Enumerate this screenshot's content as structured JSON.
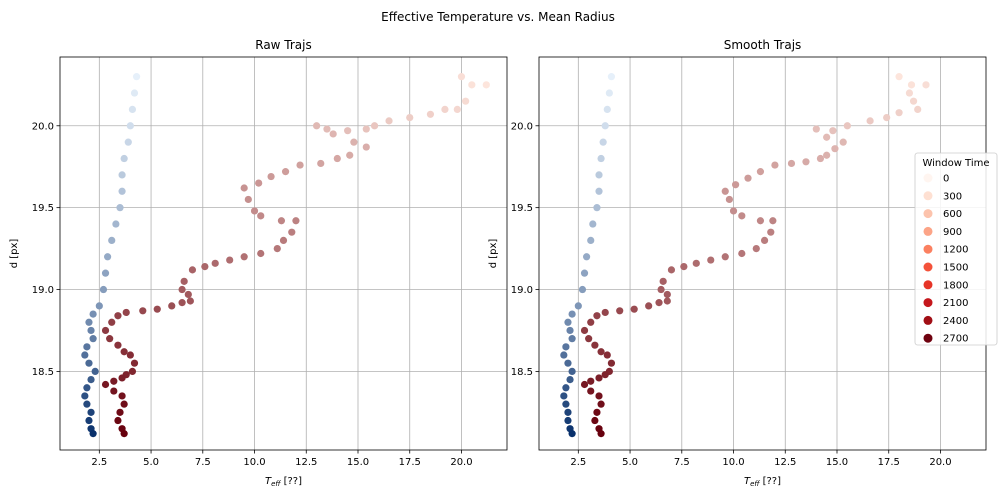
{
  "figure": {
    "suptitle": "Effective Temperature vs. Mean Radius"
  },
  "chart_data": [
    {
      "type": "scatter",
      "title": "Raw Trajs",
      "xlabel": "T_eff [??]",
      "ylabel": "d [px]",
      "xlim": [
        0.6,
        22.2
      ],
      "ylim": [
        18.02,
        20.42
      ],
      "xticks": [
        2.5,
        5.0,
        7.5,
        10.0,
        12.5,
        15.0,
        17.5,
        20.0
      ],
      "xtick_labels": [
        "2.5",
        "5.0",
        "7.5",
        "10.0",
        "12.5",
        "15.0",
        "17.5",
        "20.0"
      ],
      "yticks": [
        18.5,
        19.0,
        19.5,
        20.0
      ],
      "ytick_labels": [
        "18.5",
        "19.0",
        "19.5",
        "20.0"
      ],
      "grid": true,
      "series": [
        {
          "colormap": "Blues",
          "color_range": [
            "#e6f0fa",
            "#08306b"
          ],
          "points": [
            [
              4.3,
              20.3
            ],
            [
              4.2,
              20.2
            ],
            [
              4.1,
              20.1
            ],
            [
              4.0,
              20.0
            ],
            [
              3.9,
              19.9
            ],
            [
              3.7,
              19.8
            ],
            [
              3.6,
              19.7
            ],
            [
              3.6,
              19.6
            ],
            [
              3.5,
              19.5
            ],
            [
              3.3,
              19.4
            ],
            [
              3.1,
              19.3
            ],
            [
              2.9,
              19.2
            ],
            [
              2.8,
              19.1
            ],
            [
              2.7,
              19.0
            ],
            [
              2.5,
              18.9
            ],
            [
              2.2,
              18.85
            ],
            [
              2.0,
              18.8
            ],
            [
              2.1,
              18.75
            ],
            [
              2.2,
              18.7
            ],
            [
              1.9,
              18.65
            ],
            [
              1.8,
              18.6
            ],
            [
              2.0,
              18.55
            ],
            [
              2.3,
              18.5
            ],
            [
              2.1,
              18.45
            ],
            [
              1.9,
              18.4
            ],
            [
              1.8,
              18.35
            ],
            [
              1.9,
              18.3
            ],
            [
              2.1,
              18.25
            ],
            [
              2.0,
              18.2
            ],
            [
              2.1,
              18.15
            ],
            [
              2.2,
              18.12
            ]
          ]
        },
        {
          "colormap": "Reds",
          "color_range": [
            "#fde5dc",
            "#67000d"
          ],
          "points": [
            [
              21.2,
              20.25
            ],
            [
              20.5,
              20.25
            ],
            [
              20.0,
              20.3
            ],
            [
              20.2,
              20.15
            ],
            [
              19.8,
              20.1
            ],
            [
              19.2,
              20.1
            ],
            [
              18.5,
              20.07
            ],
            [
              17.5,
              20.05
            ],
            [
              16.5,
              20.03
            ],
            [
              15.8,
              20.0
            ],
            [
              15.4,
              19.98
            ],
            [
              14.5,
              19.97
            ],
            [
              13.5,
              19.98
            ],
            [
              13.0,
              20.0
            ],
            [
              13.8,
              19.95
            ],
            [
              14.8,
              19.9
            ],
            [
              15.4,
              19.87
            ],
            [
              14.6,
              19.82
            ],
            [
              14.0,
              19.8
            ],
            [
              13.2,
              19.77
            ],
            [
              12.2,
              19.76
            ],
            [
              11.5,
              19.72
            ],
            [
              10.8,
              19.69
            ],
            [
              10.2,
              19.65
            ],
            [
              9.5,
              19.62
            ],
            [
              9.7,
              19.55
            ],
            [
              10.0,
              19.48
            ],
            [
              10.3,
              19.45
            ],
            [
              11.3,
              19.42
            ],
            [
              12.0,
              19.42
            ],
            [
              11.8,
              19.35
            ],
            [
              11.4,
              19.3
            ],
            [
              11.1,
              19.25
            ],
            [
              10.3,
              19.22
            ],
            [
              9.5,
              19.2
            ],
            [
              8.8,
              19.18
            ],
            [
              8.1,
              19.16
            ],
            [
              7.6,
              19.14
            ],
            [
              7.0,
              19.12
            ],
            [
              6.6,
              19.05
            ],
            [
              6.5,
              19.0
            ],
            [
              6.8,
              18.97
            ],
            [
              6.9,
              18.93
            ],
            [
              6.5,
              18.92
            ],
            [
              6.0,
              18.9
            ],
            [
              5.3,
              18.88
            ],
            [
              4.6,
              18.87
            ],
            [
              3.8,
              18.86
            ],
            [
              3.4,
              18.84
            ],
            [
              3.1,
              18.8
            ],
            [
              2.8,
              18.75
            ],
            [
              3.0,
              18.7
            ],
            [
              3.4,
              18.66
            ],
            [
              3.7,
              18.62
            ],
            [
              4.0,
              18.6
            ],
            [
              4.2,
              18.55
            ],
            [
              4.1,
              18.5
            ],
            [
              3.8,
              18.48
            ],
            [
              3.6,
              18.46
            ],
            [
              3.2,
              18.44
            ],
            [
              2.8,
              18.42
            ],
            [
              3.2,
              18.38
            ],
            [
              3.6,
              18.35
            ],
            [
              3.7,
              18.3
            ],
            [
              3.5,
              18.25
            ],
            [
              3.4,
              18.2
            ],
            [
              3.6,
              18.15
            ],
            [
              3.7,
              18.12
            ]
          ]
        }
      ]
    },
    {
      "type": "scatter",
      "title": "Smooth Trajs",
      "xlabel": "T_eff [??]",
      "ylabel": "d [px]",
      "xlim": [
        0.6,
        22.2
      ],
      "ylim": [
        18.02,
        20.42
      ],
      "xticks": [
        2.5,
        5.0,
        7.5,
        10.0,
        12.5,
        15.0,
        17.5,
        20.0
      ],
      "xtick_labels": [
        "2.5",
        "5.0",
        "7.5",
        "10.0",
        "12.5",
        "15.0",
        "17.5",
        "20.0"
      ],
      "yticks": [
        18.5,
        19.0,
        19.5,
        20.0
      ],
      "ytick_labels": [
        "18.5",
        "19.0",
        "19.5",
        "20.0"
      ],
      "grid": true,
      "series": [
        {
          "colormap": "Blues",
          "color_range": [
            "#e6f0fa",
            "#08306b"
          ],
          "points": [
            [
              4.1,
              20.3
            ],
            [
              4.0,
              20.2
            ],
            [
              3.9,
              20.1
            ],
            [
              3.8,
              20.0
            ],
            [
              3.7,
              19.9
            ],
            [
              3.6,
              19.8
            ],
            [
              3.5,
              19.7
            ],
            [
              3.5,
              19.6
            ],
            [
              3.4,
              19.5
            ],
            [
              3.2,
              19.4
            ],
            [
              3.1,
              19.3
            ],
            [
              2.9,
              19.2
            ],
            [
              2.8,
              19.1
            ],
            [
              2.7,
              19.0
            ],
            [
              2.5,
              18.9
            ],
            [
              2.2,
              18.85
            ],
            [
              2.0,
              18.8
            ],
            [
              2.1,
              18.75
            ],
            [
              2.2,
              18.7
            ],
            [
              1.9,
              18.65
            ],
            [
              1.8,
              18.6
            ],
            [
              2.0,
              18.55
            ],
            [
              2.2,
              18.5
            ],
            [
              2.1,
              18.45
            ],
            [
              1.9,
              18.4
            ],
            [
              1.8,
              18.35
            ],
            [
              1.9,
              18.3
            ],
            [
              2.0,
              18.25
            ],
            [
              2.0,
              18.2
            ],
            [
              2.1,
              18.15
            ],
            [
              2.2,
              18.12
            ]
          ]
        },
        {
          "colormap": "Reds",
          "color_range": [
            "#fde5dc",
            "#67000d"
          ],
          "points": [
            [
              18.0,
              20.3
            ],
            [
              18.6,
              20.25
            ],
            [
              19.3,
              20.25
            ],
            [
              18.5,
              20.2
            ],
            [
              18.7,
              20.15
            ],
            [
              18.9,
              20.1
            ],
            [
              18.0,
              20.08
            ],
            [
              17.4,
              20.05
            ],
            [
              16.6,
              20.03
            ],
            [
              15.5,
              20.0
            ],
            [
              14.8,
              19.97
            ],
            [
              14.0,
              19.98
            ],
            [
              14.5,
              19.93
            ],
            [
              15.3,
              19.9
            ],
            [
              14.9,
              19.86
            ],
            [
              14.5,
              19.82
            ],
            [
              14.2,
              19.8
            ],
            [
              13.5,
              19.78
            ],
            [
              12.8,
              19.77
            ],
            [
              12.0,
              19.76
            ],
            [
              11.3,
              19.72
            ],
            [
              10.7,
              19.68
            ],
            [
              10.1,
              19.64
            ],
            [
              9.6,
              19.6
            ],
            [
              9.8,
              19.55
            ],
            [
              10.0,
              19.48
            ],
            [
              10.4,
              19.45
            ],
            [
              11.3,
              19.42
            ],
            [
              11.9,
              19.42
            ],
            [
              11.8,
              19.35
            ],
            [
              11.5,
              19.3
            ],
            [
              11.1,
              19.25
            ],
            [
              10.4,
              19.22
            ],
            [
              9.6,
              19.2
            ],
            [
              8.9,
              19.18
            ],
            [
              8.2,
              19.16
            ],
            [
              7.6,
              19.14
            ],
            [
              7.0,
              19.12
            ],
            [
              6.6,
              19.05
            ],
            [
              6.5,
              19.0
            ],
            [
              6.8,
              18.97
            ],
            [
              6.8,
              18.93
            ],
            [
              6.4,
              18.92
            ],
            [
              5.9,
              18.9
            ],
            [
              5.2,
              18.88
            ],
            [
              4.5,
              18.87
            ],
            [
              3.8,
              18.86
            ],
            [
              3.4,
              18.84
            ],
            [
              3.1,
              18.8
            ],
            [
              2.8,
              18.75
            ],
            [
              3.0,
              18.7
            ],
            [
              3.3,
              18.66
            ],
            [
              3.6,
              18.62
            ],
            [
              3.9,
              18.6
            ],
            [
              4.1,
              18.55
            ],
            [
              4.0,
              18.5
            ],
            [
              3.8,
              18.48
            ],
            [
              3.5,
              18.46
            ],
            [
              3.1,
              18.44
            ],
            [
              2.8,
              18.42
            ],
            [
              3.1,
              18.38
            ],
            [
              3.5,
              18.35
            ],
            [
              3.6,
              18.3
            ],
            [
              3.4,
              18.25
            ],
            [
              3.3,
              18.2
            ],
            [
              3.5,
              18.15
            ],
            [
              3.6,
              18.12
            ]
          ]
        }
      ],
      "legend": {
        "title": "Window Time",
        "placement": "center-right",
        "entries": [
          {
            "label": "0",
            "color": "#fff5f0"
          },
          {
            "label": "300",
            "color": "#fee0d2"
          },
          {
            "label": "600",
            "color": "#fcc3ac"
          },
          {
            "label": "900",
            "color": "#fca487"
          },
          {
            "label": "1200",
            "color": "#fb8060"
          },
          {
            "label": "1500",
            "color": "#f4523a"
          },
          {
            "label": "1800",
            "color": "#e63427"
          },
          {
            "label": "2100",
            "color": "#c5171c"
          },
          {
            "label": "2400",
            "color": "#a10e15"
          },
          {
            "label": "2700",
            "color": "#6f020f"
          }
        ]
      }
    }
  ]
}
